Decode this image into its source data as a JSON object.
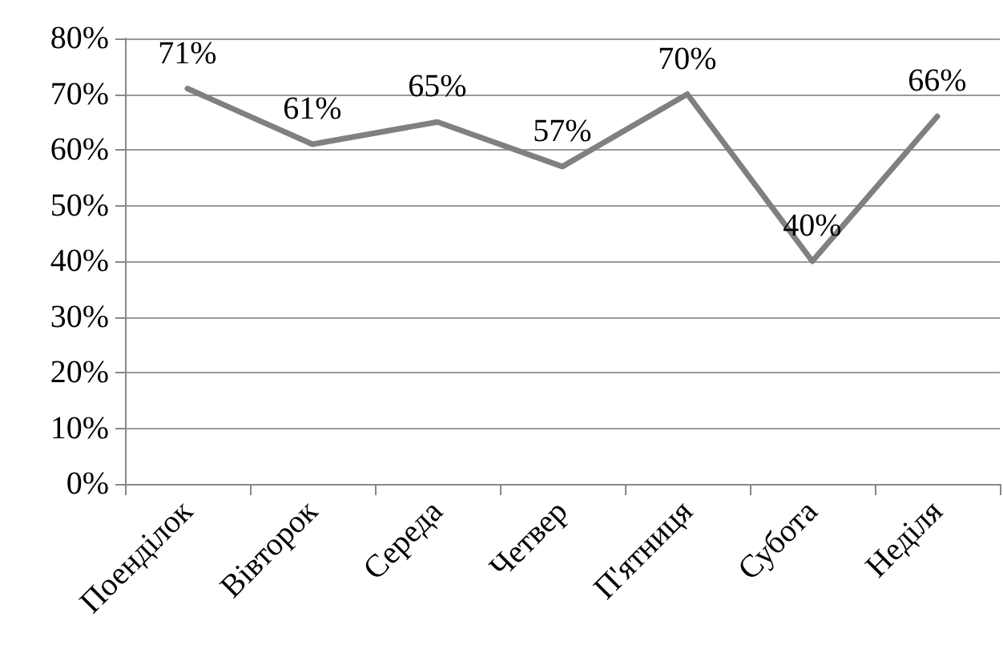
{
  "chart_data": {
    "type": "line",
    "categories": [
      "Поенділок",
      "Вівторок",
      "Середа",
      "Четвер",
      "П'ятниця",
      "Субота",
      "Неділя"
    ],
    "series": [
      {
        "color": "#808080",
        "values": [
          71,
          61,
          65,
          57,
          70,
          40,
          66
        ],
        "value_labels": [
          "71%",
          "61%",
          "65%",
          "57%",
          "70%",
          "40%",
          "66%"
        ]
      }
    ],
    "ylim": [
      0,
      80
    ],
    "yticks": [
      {
        "value": 0,
        "label": "0%"
      },
      {
        "value": 10,
        "label": "10%"
      },
      {
        "value": 20,
        "label": "20%"
      },
      {
        "value": 30,
        "label": "30%"
      },
      {
        "value": 40,
        "label": "40%"
      },
      {
        "value": 50,
        "label": "50%"
      },
      {
        "value": 60,
        "label": "60%"
      },
      {
        "value": 70,
        "label": "70%"
      },
      {
        "value": 80,
        "label": "80%"
      }
    ],
    "grid": "y",
    "marker": "none",
    "line_style": "solid"
  }
}
